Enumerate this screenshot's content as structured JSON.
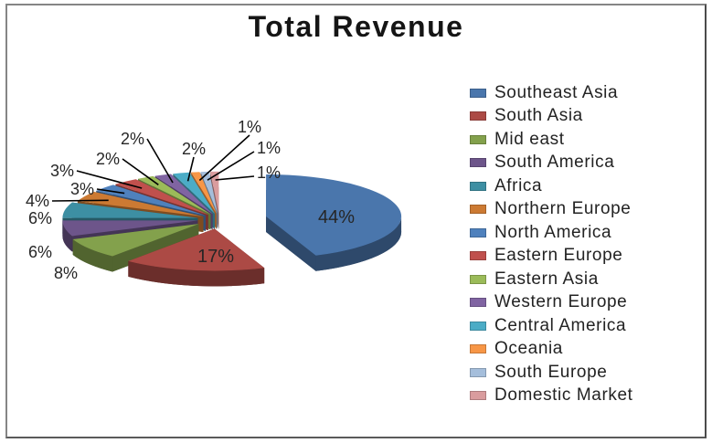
{
  "title": "Total Revenue",
  "chart_data": {
    "type": "pie",
    "title": "Total Revenue",
    "unit": "percent",
    "style": "3d-exploded-pie",
    "legend_position": "right",
    "label_format": "percent-outside-with-leader-lines-for-small-slices",
    "slices": [
      {
        "label": "Southeast Asia",
        "value": 44,
        "color": "#4A76AC"
      },
      {
        "label": "South Asia",
        "value": 17,
        "color": "#AC4A45"
      },
      {
        "label": "Mid east",
        "value": 8,
        "color": "#83A14C"
      },
      {
        "label": "South America",
        "value": 6,
        "color": "#6D558A"
      },
      {
        "label": "Africa",
        "value": 6,
        "color": "#3D8FA3"
      },
      {
        "label": "Northern Europe",
        "value": 4,
        "color": "#CC7A33"
      },
      {
        "label": "North America",
        "value": 3,
        "color": "#4F81BD"
      },
      {
        "label": "Eastern Europe",
        "value": 3,
        "color": "#C0504D"
      },
      {
        "label": "Eastern Asia",
        "value": 2,
        "color": "#9BBB59"
      },
      {
        "label": "Western Europe",
        "value": 2,
        "color": "#8064A2"
      },
      {
        "label": "Central America",
        "value": 2,
        "color": "#4BACC6"
      },
      {
        "label": "Oceania",
        "value": 1,
        "color": "#F79646"
      },
      {
        "label": "South Europe",
        "value": 1,
        "color": "#A5BEDB"
      },
      {
        "label": "Domestic Market",
        "value": 1,
        "color": "#D99C9E"
      }
    ]
  }
}
